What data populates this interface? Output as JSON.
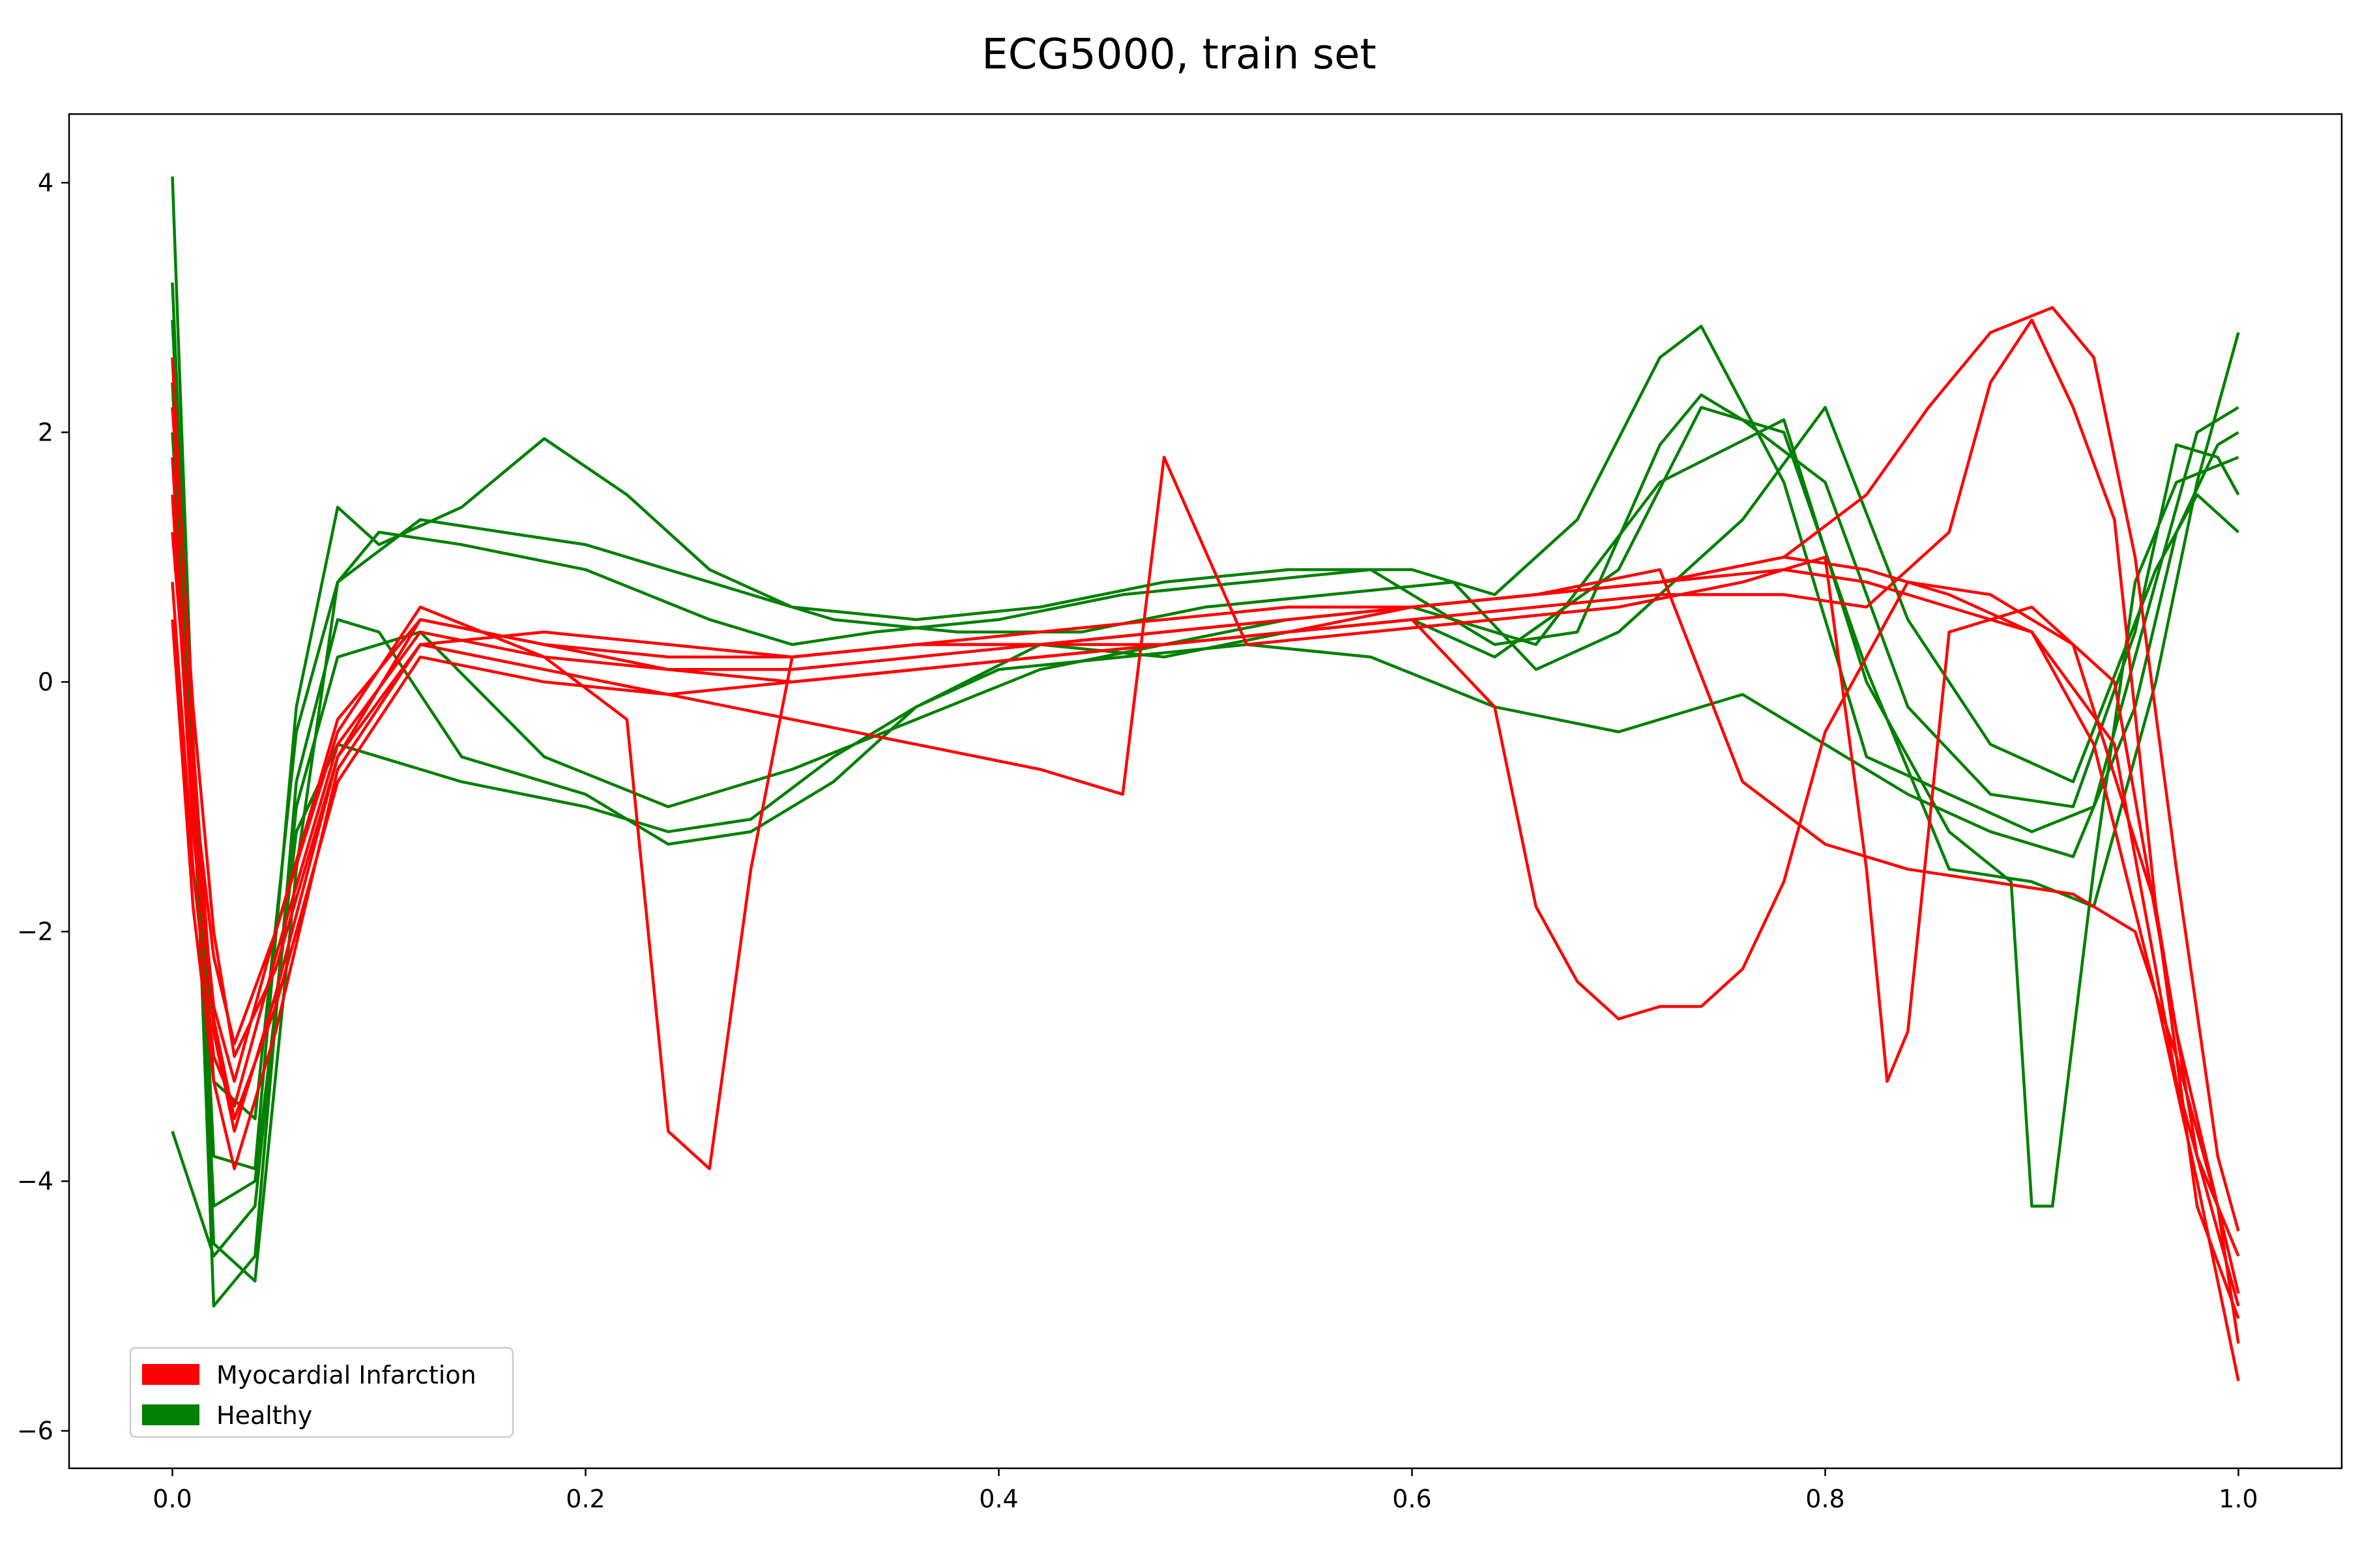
{
  "chart_data": {
    "type": "line",
    "title": "ECG5000, train set",
    "xlabel": "",
    "ylabel": "",
    "xlim": [
      -0.05,
      1.05
    ],
    "ylim": [
      -6.3,
      4.55
    ],
    "x_ticks": [
      0.0,
      0.2,
      0.4,
      0.6,
      0.8,
      1.0
    ],
    "x_tick_labels": [
      "0.0",
      "0.2",
      "0.4",
      "0.6",
      "0.8",
      "1.0"
    ],
    "y_ticks": [
      4,
      2,
      0,
      -2,
      -4,
      -6
    ],
    "y_tick_labels": [
      "4",
      "2",
      "0",
      "−2",
      "−4",
      "−6"
    ],
    "grid": false,
    "legend_position": "lower-left",
    "legend": [
      {
        "label": "Myocardial Infarction",
        "color": "#ff0000"
      },
      {
        "label": "Healthy",
        "color": "#008000"
      }
    ],
    "series": [
      {
        "name": "Healthy",
        "color": "#008000",
        "representative_traces": [
          {
            "x": [
              0.0,
              0.02,
              0.04,
              0.06,
              0.08,
              0.1,
              0.14,
              0.2,
              0.26,
              0.3,
              0.34,
              0.4,
              0.46,
              0.52,
              0.58,
              0.64,
              0.68,
              0.72,
              0.74,
              0.76,
              0.8,
              0.84,
              0.88,
              0.92,
              0.95,
              0.97,
              0.99,
              1.0
            ],
            "y": [
              3.2,
              -4.5,
              -4.8,
              -1.5,
              0.8,
              1.2,
              1.1,
              0.9,
              0.5,
              0.3,
              0.4,
              0.5,
              0.7,
              0.8,
              0.9,
              0.3,
              0.4,
              1.9,
              2.3,
              2.1,
              1.6,
              -0.2,
              -0.9,
              -1.0,
              0.4,
              1.9,
              1.8,
              1.5
            ]
          },
          {
            "x": [
              0.0,
              0.02,
              0.04,
              0.06,
              0.08,
              0.1,
              0.14,
              0.2,
              0.24,
              0.28,
              0.32,
              0.36,
              0.4,
              0.46,
              0.52,
              0.58,
              0.64,
              0.7,
              0.76,
              0.8,
              0.84,
              0.88,
              0.92,
              0.95,
              0.97,
              0.99,
              1.0
            ],
            "y": [
              2.4,
              -4.2,
              -4.0,
              -1.2,
              -0.5,
              -0.6,
              -0.8,
              -1.0,
              -1.2,
              -1.1,
              -0.6,
              -0.2,
              0.1,
              0.2,
              0.3,
              0.2,
              -0.2,
              -0.4,
              -0.1,
              -0.5,
              -0.9,
              -1.2,
              -1.4,
              -0.2,
              1.2,
              1.9,
              2.0
            ]
          },
          {
            "x": [
              0.0,
              0.02,
              0.04,
              0.06,
              0.08,
              0.1,
              0.14,
              0.2,
              0.24,
              0.28,
              0.32,
              0.36,
              0.42,
              0.48,
              0.54,
              0.6,
              0.64,
              0.7,
              0.74,
              0.78,
              0.82,
              0.86,
              0.9,
              0.93,
              0.96,
              0.98,
              1.0
            ],
            "y": [
              4.05,
              -5.0,
              -4.6,
              -0.8,
              0.5,
              0.4,
              -0.6,
              -0.9,
              -1.3,
              -1.2,
              -0.8,
              -0.2,
              0.3,
              0.2,
              0.4,
              0.5,
              0.2,
              0.9,
              2.2,
              2.0,
              0.1,
              -1.5,
              -1.6,
              -1.8,
              0.0,
              1.6,
              2.8
            ]
          },
          {
            "x": [
              0.0,
              0.02,
              0.04,
              0.06,
              0.08,
              0.1,
              0.14,
              0.18,
              0.22,
              0.26,
              0.3,
              0.36,
              0.42,
              0.48,
              0.54,
              0.6,
              0.64,
              0.68,
              0.72,
              0.74,
              0.78,
              0.82,
              0.86,
              0.9,
              0.93,
              0.96,
              0.98,
              1.0
            ],
            "y": [
              2.9,
              -3.8,
              -3.9,
              -0.2,
              1.4,
              1.1,
              1.4,
              1.95,
              1.5,
              0.9,
              0.6,
              0.5,
              0.6,
              0.8,
              0.9,
              0.9,
              0.7,
              1.3,
              2.6,
              2.85,
              1.6,
              -0.6,
              -0.9,
              -1.2,
              -1.0,
              0.8,
              2.0,
              2.2
            ]
          },
          {
            "x": [
              0.0,
              0.02,
              0.04,
              0.06,
              0.08,
              0.12,
              0.18,
              0.24,
              0.3,
              0.36,
              0.42,
              0.48,
              0.54,
              0.6,
              0.66,
              0.72,
              0.78,
              0.82,
              0.86,
              0.89,
              0.9,
              0.91,
              0.93,
              0.95,
              0.97,
              1.0
            ],
            "y": [
              -3.6,
              -4.6,
              -4.2,
              -1.0,
              0.2,
              0.4,
              -0.6,
              -1.0,
              -0.7,
              -0.3,
              0.1,
              0.3,
              0.5,
              0.6,
              0.3,
              1.6,
              2.1,
              0.0,
              -1.2,
              -1.6,
              -4.2,
              -4.2,
              -1.5,
              0.8,
              1.6,
              1.8
            ]
          },
          {
            "x": [
              0.0,
              0.02,
              0.04,
              0.06,
              0.08,
              0.12,
              0.16,
              0.2,
              0.26,
              0.32,
              0.38,
              0.44,
              0.5,
              0.56,
              0.62,
              0.66,
              0.7,
              0.76,
              0.8,
              0.84,
              0.88,
              0.92,
              0.96,
              0.98,
              1.0
            ],
            "y": [
              2.0,
              -3.2,
              -3.5,
              -0.4,
              0.8,
              1.3,
              1.2,
              1.1,
              0.8,
              0.5,
              0.4,
              0.4,
              0.6,
              0.7,
              0.8,
              0.1,
              0.4,
              1.3,
              2.2,
              0.5,
              -0.5,
              -0.8,
              0.9,
              1.5,
              1.2
            ]
          }
        ]
      },
      {
        "name": "Myocardial Infarction",
        "color": "#ff0000",
        "representative_traces": [
          {
            "x": [
              0.0,
              0.01,
              0.02,
              0.03,
              0.05,
              0.08,
              0.12,
              0.18,
              0.24,
              0.3,
              0.36,
              0.42,
              0.48,
              0.54,
              0.6,
              0.66,
              0.72,
              0.78,
              0.82,
              0.86,
              0.9,
              0.93,
              0.96,
              0.98,
              1.0
            ],
            "y": [
              2.6,
              -0.5,
              -2.8,
              -3.6,
              -2.5,
              -0.6,
              0.5,
              0.3,
              0.1,
              0.1,
              0.2,
              0.3,
              0.3,
              0.4,
              0.6,
              0.7,
              0.8,
              0.9,
              0.8,
              0.6,
              0.4,
              -0.5,
              -2.5,
              -4.0,
              -5.6
            ]
          },
          {
            "x": [
              0.0,
              0.01,
              0.02,
              0.03,
              0.05,
              0.08,
              0.12,
              0.18,
              0.22,
              0.24,
              0.26,
              0.28,
              0.3,
              0.36,
              0.42,
              0.48,
              0.54,
              0.6,
              0.66,
              0.72,
              0.78,
              0.82,
              0.86,
              0.9,
              0.94,
              0.97,
              1.0
            ],
            "y": [
              1.8,
              -1.0,
              -2.6,
              -3.2,
              -2.0,
              -0.4,
              0.6,
              0.2,
              -0.3,
              -3.6,
              -3.9,
              -1.5,
              0.2,
              0.3,
              0.3,
              0.4,
              0.5,
              0.6,
              0.7,
              0.8,
              1.0,
              0.9,
              0.7,
              0.4,
              -0.5,
              -3.2,
              -5.0
            ]
          },
          {
            "x": [
              0.0,
              0.01,
              0.02,
              0.03,
              0.05,
              0.08,
              0.12,
              0.18,
              0.24,
              0.3,
              0.36,
              0.42,
              0.48,
              0.54,
              0.6,
              0.64,
              0.66,
              0.68,
              0.7,
              0.72,
              0.74,
              0.76,
              0.78,
              0.8,
              0.84,
              0.88,
              0.92,
              0.96,
              0.98,
              1.0
            ],
            "y": [
              0.8,
              -1.5,
              -3.0,
              -3.4,
              -2.2,
              -0.5,
              0.4,
              0.2,
              0.1,
              0.0,
              0.1,
              0.2,
              0.3,
              0.4,
              0.5,
              -0.2,
              -1.8,
              -2.4,
              -2.7,
              -2.6,
              -2.6,
              -2.3,
              -1.6,
              -0.4,
              0.8,
              0.7,
              0.3,
              -1.8,
              -3.8,
              -4.6
            ]
          },
          {
            "x": [
              0.0,
              0.01,
              0.02,
              0.03,
              0.05,
              0.08,
              0.12,
              0.18,
              0.24,
              0.3,
              0.36,
              0.42,
              0.48,
              0.54,
              0.6,
              0.66,
              0.72,
              0.78,
              0.82,
              0.85,
              0.88,
              0.91,
              0.93,
              0.95,
              0.97,
              0.99,
              1.0
            ],
            "y": [
              1.2,
              -0.8,
              -2.2,
              -2.9,
              -2.0,
              -0.3,
              0.5,
              0.3,
              0.2,
              0.2,
              0.3,
              0.3,
              0.4,
              0.5,
              0.6,
              0.7,
              0.8,
              1.0,
              1.5,
              2.2,
              2.8,
              3.0,
              2.6,
              1.0,
              -1.5,
              -3.8,
              -4.4
            ]
          },
          {
            "x": [
              0.0,
              0.01,
              0.02,
              0.03,
              0.05,
              0.08,
              0.12,
              0.18,
              0.24,
              0.3,
              0.36,
              0.42,
              0.46,
              0.48,
              0.52,
              0.58,
              0.64,
              0.7,
              0.76,
              0.8,
              0.82,
              0.83,
              0.84,
              0.86,
              0.9,
              0.94,
              0.97,
              1.0
            ],
            "y": [
              2.2,
              -0.2,
              -2.0,
              -3.0,
              -2.3,
              -0.6,
              0.3,
              0.1,
              -0.1,
              -0.3,
              -0.5,
              -0.7,
              -0.9,
              1.8,
              0.3,
              0.4,
              0.5,
              0.6,
              0.8,
              1.0,
              -1.5,
              -3.2,
              -2.8,
              0.4,
              0.6,
              0.0,
              -2.8,
              -4.9
            ]
          },
          {
            "x": [
              0.0,
              0.01,
              0.02,
              0.03,
              0.05,
              0.08,
              0.12,
              0.18,
              0.24,
              0.3,
              0.36,
              0.42,
              0.48,
              0.54,
              0.6,
              0.66,
              0.72,
              0.78,
              0.82,
              0.86,
              0.88,
              0.9,
              0.92,
              0.94,
              0.96,
              0.98,
              1.0
            ],
            "y": [
              1.5,
              -1.2,
              -2.7,
              -3.5,
              -2.6,
              -0.8,
              0.2,
              0.0,
              -0.1,
              0.0,
              0.1,
              0.2,
              0.3,
              0.4,
              0.5,
              0.6,
              0.7,
              0.7,
              0.6,
              1.2,
              2.4,
              2.9,
              2.2,
              1.3,
              -1.8,
              -4.2,
              -5.1
            ]
          },
          {
            "x": [
              0.0,
              0.01,
              0.02,
              0.03,
              0.05,
              0.08,
              0.12,
              0.18,
              0.24,
              0.3,
              0.36,
              0.42,
              0.48,
              0.54,
              0.6,
              0.66,
              0.72,
              0.76,
              0.8,
              0.84,
              0.88,
              0.92,
              0.95,
              0.97,
              0.99,
              1.0
            ],
            "y": [
              0.5,
              -1.8,
              -3.2,
              -3.9,
              -2.8,
              -0.7,
              0.3,
              0.4,
              0.3,
              0.2,
              0.3,
              0.4,
              0.5,
              0.6,
              0.6,
              0.7,
              0.9,
              -0.8,
              -1.3,
              -1.5,
              -1.6,
              -1.7,
              -2.0,
              -3.0,
              -4.2,
              -5.3
            ]
          }
        ]
      }
    ]
  }
}
